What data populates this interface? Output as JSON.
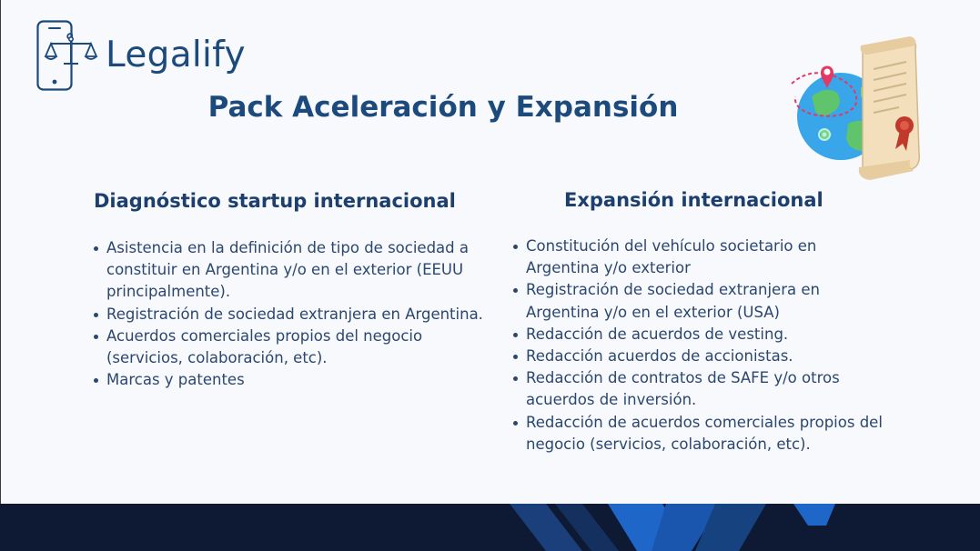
{
  "brand": {
    "name": "Legalify",
    "primary_color": "#1d4a7c",
    "footer_color": "#0e1a33",
    "accent_blue": "#1f66c9"
  },
  "slide": {
    "title": "Pack Aceleración y Expansión",
    "columns": [
      {
        "title": "Diagnóstico startup internacional",
        "items": [
          "Asistencia en la definición de tipo de sociedad a constituir en Argentina y/o en el exterior (EEUU principalmente).",
          "Registración de sociedad extranjera en Argentina.",
          "Acuerdos comerciales propios del negocio (servicios, colaboración, etc).",
          "Marcas y patentes"
        ]
      },
      {
        "title": "Expansión internacional",
        "items": [
          "Constitución del vehículo societario en Argentina y/o exterior",
          "Registración de sociedad extranjera en Argentina y/o en el exterior (USA)",
          "Redacción de acuerdos de vesting.",
          "Redacción acuerdos de accionistas.",
          "Redacción de contratos de SAFE y/o otros acuerdos de inversión.",
          "Redacción de acuerdos comerciales propios del negocio (servicios, colaboración, etc)."
        ]
      }
    ]
  },
  "icons": {
    "logo": "phone-scales-icon",
    "illustration": "globe-certificate-illustration",
    "bullet": "bullet-dot-icon"
  }
}
